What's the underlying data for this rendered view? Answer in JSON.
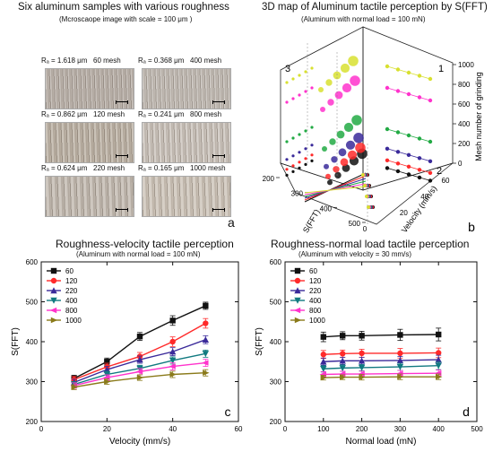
{
  "panel_a": {
    "title": "Six aluminum samples with various roughness",
    "subtitle": "(Mcroscaope image with scale = 100 μm )",
    "letter": "a",
    "samples": [
      {
        "ra": "Rₐ = 1.618 μm",
        "mesh": "60 mesh"
      },
      {
        "ra": "Rₐ = 0.368 μm",
        "mesh": "400 mesh"
      },
      {
        "ra": "Rₐ = 0.862 μm",
        "mesh": "120 mesh"
      },
      {
        "ra": "Rₐ = 0.241 μm",
        "mesh": "800 mesh"
      },
      {
        "ra": "Rₐ = 0.624 μm",
        "mesh": "220 mesh"
      },
      {
        "ra": "Rₐ = 0.165 μm",
        "mesh": "1000 mesh"
      }
    ]
  },
  "colors": {
    "s60": "#111111",
    "s120": "#ff2a2a",
    "s220": "#3a2a9a",
    "s400": "#117a80",
    "s800": "#ff33cc",
    "s1000": "#8a7a1a"
  },
  "chart_data": [
    {
      "type": "scatter",
      "panel": "b",
      "title": "3D map of Aluminum tactile perception by S(FFT)",
      "subtitle": "(Aluminum with normal load = 100 mN)",
      "axes": {
        "s_fft": {
          "label": "S(FFT)",
          "ticks": [
            "200",
            "300",
            "400",
            "500"
          ]
        },
        "velocity": {
          "label": "Velocity (mm/s)",
          "ticks": [
            "0",
            "20",
            "40",
            "60"
          ]
        },
        "mesh": {
          "label": "Mesh number of grinding",
          "ticks": [
            "0",
            "200",
            "400",
            "600",
            "800",
            "1000"
          ]
        }
      },
      "view_labels": [
        "1",
        "2",
        "3"
      ],
      "letter": "b"
    },
    {
      "type": "line",
      "panel": "c",
      "title": "Roughness-velocity tactile perception",
      "subtitle": "(Aluminum with normal load = 100 mN)",
      "xlabel": "Velocity (mm/s)",
      "ylabel": "S(FFT)",
      "xlim": [
        0,
        60
      ],
      "ylim": [
        200,
        600
      ],
      "xticks": [
        "0",
        "20",
        "40",
        "60"
      ],
      "yticks": [
        "200",
        "300",
        "400",
        "500",
        "600"
      ],
      "x": [
        10,
        20,
        30,
        40,
        50
      ],
      "series": [
        {
          "name": "60",
          "values": [
            308,
            350,
            413,
            453,
            490
          ],
          "err": [
            8,
            9,
            10,
            12,
            9
          ]
        },
        {
          "name": "120",
          "values": [
            305,
            337,
            363,
            400,
            446
          ],
          "err": [
            8,
            9,
            10,
            12,
            12
          ]
        },
        {
          "name": "220",
          "values": [
            298,
            330,
            355,
            375,
            405
          ],
          "err": [
            8,
            8,
            9,
            10,
            10
          ]
        },
        {
          "name": "400",
          "values": [
            293,
            318,
            333,
            353,
            370
          ],
          "err": [
            7,
            8,
            8,
            9,
            9
          ]
        },
        {
          "name": "800",
          "values": [
            290,
            310,
            325,
            338,
            347
          ],
          "err": [
            7,
            7,
            8,
            9,
            9
          ]
        },
        {
          "name": "1000",
          "values": [
            286,
            300,
            310,
            318,
            322
          ],
          "err": [
            6,
            7,
            7,
            8,
            8
          ]
        }
      ],
      "legend": "top-left",
      "letter": "c"
    },
    {
      "type": "line",
      "panel": "d",
      "title": "Roughness-normal load tactile perception",
      "subtitle": "(Aluminum with velocity = 30 mm/s)",
      "xlabel": "Normal load (mN)",
      "ylabel": "S(FFT)",
      "xlim": [
        0,
        500
      ],
      "ylim": [
        200,
        600
      ],
      "xticks": [
        "0",
        "100",
        "200",
        "300",
        "400",
        "500"
      ],
      "yticks": [
        "200",
        "300",
        "400",
        "500",
        "600"
      ],
      "x": [
        100,
        150,
        200,
        300,
        400
      ],
      "series": [
        {
          "name": "60",
          "values": [
            412,
            415,
            415,
            417,
            418
          ],
          "err": [
            12,
            10,
            11,
            14,
            16
          ]
        },
        {
          "name": "120",
          "values": [
            368,
            370,
            371,
            371,
            372
          ],
          "err": [
            10,
            9,
            10,
            12,
            12
          ]
        },
        {
          "name": "220",
          "values": [
            350,
            352,
            352,
            353,
            355
          ],
          "err": [
            9,
            9,
            9,
            10,
            11
          ]
        },
        {
          "name": "400",
          "values": [
            332,
            334,
            335,
            337,
            340
          ],
          "err": [
            8,
            8,
            8,
            9,
            10
          ]
        },
        {
          "name": "800",
          "values": [
            318,
            319,
            319,
            320,
            321
          ],
          "err": [
            7,
            7,
            7,
            8,
            8
          ]
        },
        {
          "name": "1000",
          "values": [
            310,
            311,
            311,
            312,
            312
          ],
          "err": [
            6,
            6,
            7,
            7,
            7
          ]
        }
      ],
      "legend": "top-left",
      "letter": "d"
    }
  ]
}
